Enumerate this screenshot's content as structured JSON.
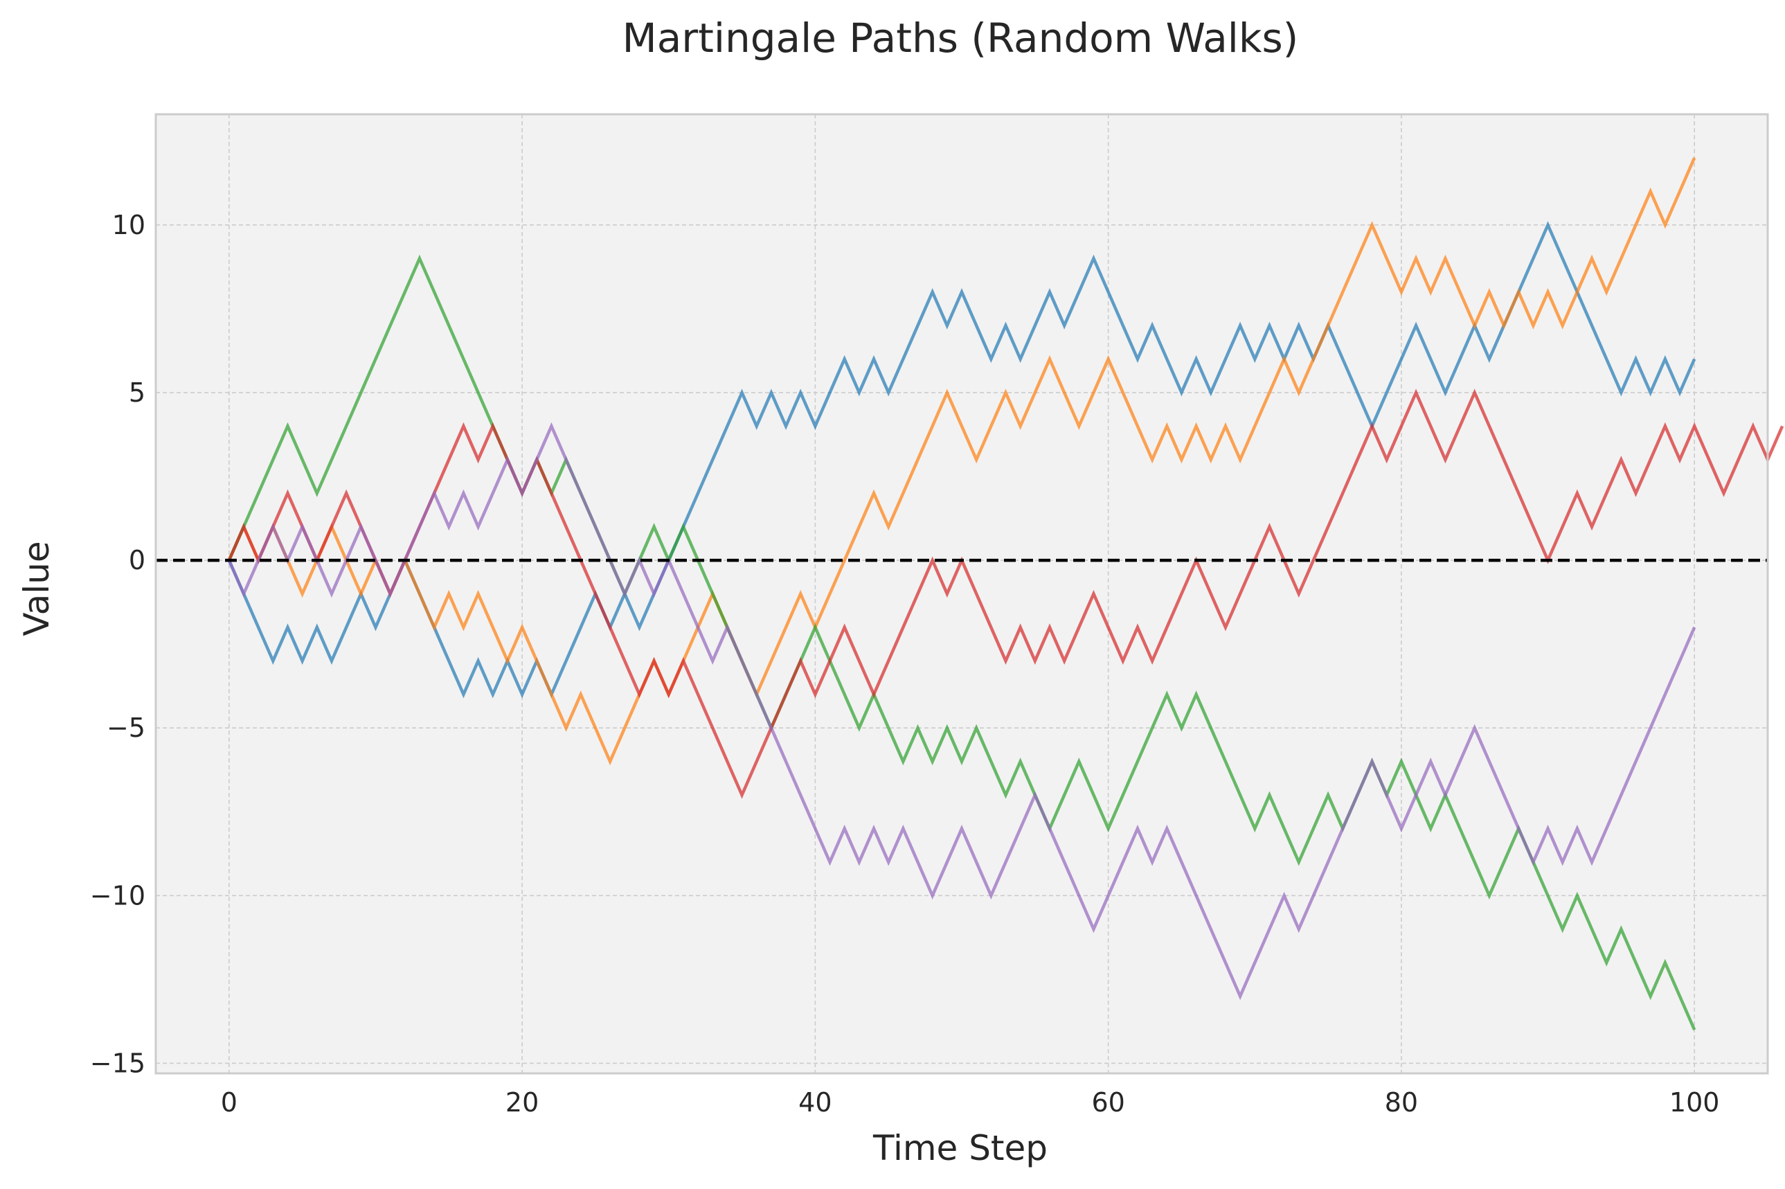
{
  "chart_data": {
    "type": "line",
    "title": "Martingale Paths (Random Walks)",
    "xlabel": "Time Step",
    "ylabel": "Value",
    "xlim": [
      -5,
      105
    ],
    "ylim": [
      -15.3,
      13.3
    ],
    "xticks": [
      0,
      20,
      40,
      60,
      80,
      100
    ],
    "yticks": [
      -15,
      -10,
      -5,
      0,
      5,
      10
    ],
    "xtick_labels": [
      "0",
      "20",
      "40",
      "60",
      "80",
      "100"
    ],
    "ytick_labels": [
      "−15",
      "−10",
      "−5",
      "0",
      "5",
      "10"
    ],
    "grid": true,
    "reference_line": {
      "y": 0,
      "style": "dashed",
      "color": "#000000"
    },
    "colors": {
      "background": "#f2f2f2",
      "grid": "#cccccc",
      "frame": "#cccccc"
    },
    "series": [
      {
        "color": "#1f77b4",
        "values": [
          0,
          -1,
          -2,
          -3,
          -2,
          -3,
          -2,
          -3,
          -2,
          -1,
          -2,
          -1,
          0,
          -1,
          -2,
          -3,
          -4,
          -3,
          -4,
          -3,
          -4,
          -3,
          -4,
          -3,
          -2,
          -1,
          -2,
          -1,
          -2,
          -1,
          0,
          1,
          2,
          3,
          4,
          5,
          4,
          5,
          4,
          5,
          4,
          5,
          6,
          5,
          6,
          5,
          6,
          7,
          8,
          7,
          8,
          7,
          6,
          7,
          6,
          7,
          8,
          7,
          8,
          9,
          8,
          7,
          6,
          7,
          6,
          5,
          6,
          5,
          6,
          7,
          6,
          7,
          6,
          7,
          6,
          7,
          6,
          5,
          4,
          5,
          6,
          7,
          6,
          5,
          6,
          7,
          6,
          7,
          8,
          9,
          10,
          9,
          8,
          7,
          6,
          5,
          6,
          5,
          6,
          5,
          6
        ]
      },
      {
        "color": "#ff7f0e",
        "values": [
          0,
          1,
          0,
          1,
          0,
          -1,
          0,
          1,
          0,
          -1,
          0,
          -1,
          0,
          -1,
          -2,
          -1,
          -2,
          -1,
          -2,
          -3,
          -2,
          -3,
          -4,
          -5,
          -4,
          -5,
          -6,
          -5,
          -4,
          -3,
          -4,
          -3,
          -2,
          -1,
          -2,
          -3,
          -4,
          -3,
          -2,
          -1,
          -2,
          -1,
          0,
          1,
          2,
          1,
          2,
          3,
          4,
          5,
          4,
          3,
          4,
          5,
          4,
          5,
          6,
          5,
          4,
          5,
          6,
          5,
          4,
          3,
          4,
          3,
          4,
          3,
          4,
          3,
          4,
          5,
          6,
          5,
          6,
          7,
          8,
          9,
          10,
          9,
          8,
          9,
          8,
          9,
          8,
          7,
          8,
          7,
          8,
          7,
          8,
          7,
          8,
          9,
          8,
          9,
          10,
          11,
          10,
          11,
          12
        ]
      },
      {
        "color": "#2ca02c",
        "values": [
          0,
          1,
          2,
          3,
          4,
          3,
          2,
          3,
          4,
          5,
          6,
          7,
          8,
          9,
          8,
          7,
          6,
          5,
          4,
          3,
          2,
          3,
          2,
          3,
          2,
          1,
          0,
          -1,
          0,
          1,
          0,
          1,
          0,
          -1,
          -2,
          -3,
          -4,
          -5,
          -4,
          -3,
          -2,
          -3,
          -4,
          -5,
          -4,
          -5,
          -6,
          -5,
          -6,
          -5,
          -6,
          -5,
          -6,
          -7,
          -6,
          -7,
          -8,
          -7,
          -6,
          -7,
          -8,
          -7,
          -6,
          -5,
          -4,
          -5,
          -4,
          -5,
          -6,
          -7,
          -8,
          -7,
          -8,
          -9,
          -8,
          -7,
          -8,
          -7,
          -6,
          -7,
          -6,
          -7,
          -8,
          -7,
          -8,
          -9,
          -10,
          -9,
          -8,
          -9,
          -10,
          -11,
          -10,
          -11,
          -12,
          -11,
          -12,
          -13,
          -12,
          -13,
          -14
        ]
      },
      {
        "color": "#d62728",
        "values": [
          0,
          1,
          0,
          1,
          2,
          1,
          0,
          1,
          2,
          1,
          0,
          -1,
          0,
          1,
          2,
          3,
          4,
          3,
          4,
          3,
          2,
          3,
          2,
          1,
          0,
          -1,
          -2,
          -3,
          -4,
          -3,
          -4,
          -3,
          -4,
          -5,
          -6,
          -7,
          -6,
          -5,
          -4,
          -3,
          -4,
          -3,
          -2,
          -3,
          -4,
          -3,
          -2,
          -1,
          0,
          -1,
          0,
          -1,
          -2,
          -3,
          -2,
          -3,
          -2,
          -3,
          -2,
          -1,
          -2,
          -3,
          -2,
          -3,
          -2,
          -1,
          0,
          -1,
          -2,
          -1,
          0,
          1,
          0,
          -1,
          0,
          1,
          2,
          3,
          4,
          3,
          4,
          5,
          4,
          3,
          4,
          5,
          4,
          3,
          2,
          1,
          0,
          1,
          2,
          1,
          2,
          3,
          2,
          3,
          4,
          3,
          4,
          3,
          2,
          3,
          4,
          3,
          4
        ]
      },
      {
        "color": "#9467bd",
        "values": [
          0,
          -1,
          0,
          1,
          0,
          1,
          0,
          -1,
          0,
          1,
          0,
          -1,
          0,
          1,
          2,
          1,
          2,
          1,
          2,
          3,
          2,
          3,
          4,
          3,
          2,
          1,
          0,
          -1,
          0,
          -1,
          0,
          -1,
          -2,
          -3,
          -2,
          -3,
          -4,
          -5,
          -6,
          -7,
          -8,
          -9,
          -8,
          -9,
          -8,
          -9,
          -8,
          -9,
          -10,
          -9,
          -8,
          -9,
          -10,
          -9,
          -8,
          -7,
          -8,
          -9,
          -10,
          -11,
          -10,
          -9,
          -8,
          -9,
          -8,
          -9,
          -10,
          -11,
          -12,
          -13,
          -12,
          -11,
          -10,
          -11,
          -10,
          -9,
          -8,
          -7,
          -6,
          -7,
          -8,
          -7,
          -6,
          -7,
          -6,
          -5,
          -6,
          -7,
          -8,
          -9,
          -8,
          -9,
          -8,
          -9,
          -8,
          -7,
          -6,
          -5,
          -4,
          -3,
          -2
        ]
      }
    ]
  }
}
